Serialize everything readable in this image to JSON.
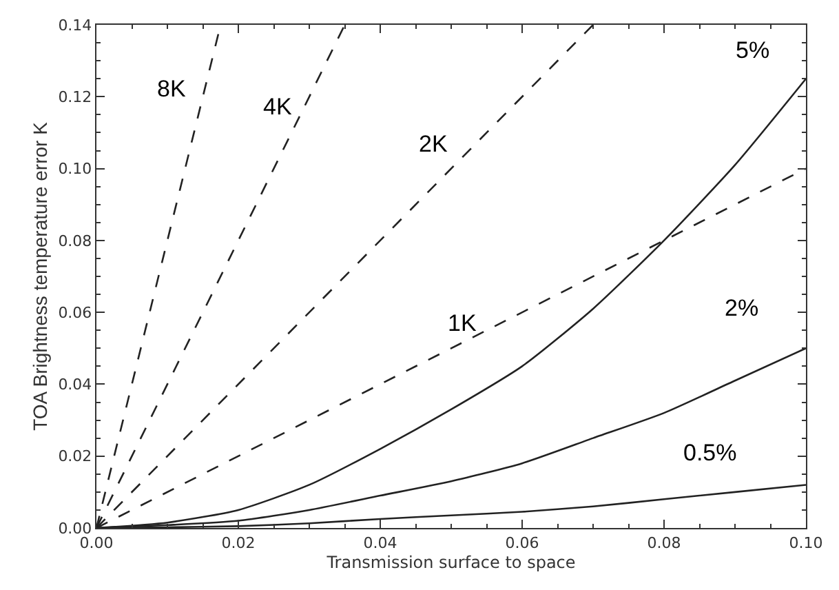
{
  "chart_data": {
    "type": "line",
    "xlabel": "Transmission surface to space",
    "ylabel": "TOA Brightness temperature error K",
    "xlim": [
      0,
      0.1
    ],
    "ylim": [
      0,
      0.14
    ],
    "xticks": [
      {
        "value": 0,
        "label": "0.00"
      },
      0.02,
      0.04,
      0.06,
      0.08,
      {
        "value": 0.1,
        "label": "0.10"
      }
    ],
    "yticks": [
      {
        "value": 0,
        "label": "0.00"
      },
      0.02,
      0.04,
      0.06,
      0.08,
      {
        "value": 0.1,
        "label": "0.10"
      },
      0.12,
      0.14
    ],
    "legend": false,
    "marker": "none",
    "series": [
      {
        "name": "8K",
        "color": "#222222",
        "line_style": "dashed",
        "x": [
          0,
          0.0175
        ],
        "values": [
          0,
          0.14
        ]
      },
      {
        "name": "4K",
        "color": "#222222",
        "line_style": "dashed",
        "x": [
          0,
          0.035
        ],
        "values": [
          0,
          0.14
        ]
      },
      {
        "name": "2K",
        "color": "#222222",
        "line_style": "dashed",
        "x": [
          0,
          0.07
        ],
        "values": [
          0,
          0.14
        ]
      },
      {
        "name": "1K",
        "color": "#222222",
        "line_style": "dashed",
        "x": [
          0,
          0.1
        ],
        "values": [
          0,
          0.1
        ]
      },
      {
        "name": "5%",
        "color": "#222222",
        "line_style": "solid",
        "x": [
          0,
          0.01,
          0.02,
          0.03,
          0.04,
          0.05,
          0.06,
          0.07,
          0.08,
          0.09,
          0.1
        ],
        "values": [
          0,
          0.0015,
          0.005,
          0.012,
          0.022,
          0.033,
          0.045,
          0.061,
          0.08,
          0.101,
          0.125
        ]
      },
      {
        "name": "2%",
        "color": "#222222",
        "line_style": "solid",
        "x": [
          0,
          0.01,
          0.02,
          0.03,
          0.04,
          0.05,
          0.06,
          0.07,
          0.08,
          0.09,
          0.1
        ],
        "values": [
          0,
          0.0008,
          0.002,
          0.005,
          0.009,
          0.013,
          0.018,
          0.025,
          0.032,
          0.041,
          0.05
        ]
      },
      {
        "name": "0.5%",
        "color": "#222222",
        "line_style": "solid",
        "x": [
          0,
          0.01,
          0.02,
          0.03,
          0.04,
          0.05,
          0.06,
          0.07,
          0.08,
          0.09,
          0.1
        ],
        "values": [
          0,
          0.0002,
          0.0005,
          0.0013,
          0.0025,
          0.0035,
          0.0045,
          0.006,
          0.008,
          0.01,
          0.012
        ]
      }
    ]
  }
}
